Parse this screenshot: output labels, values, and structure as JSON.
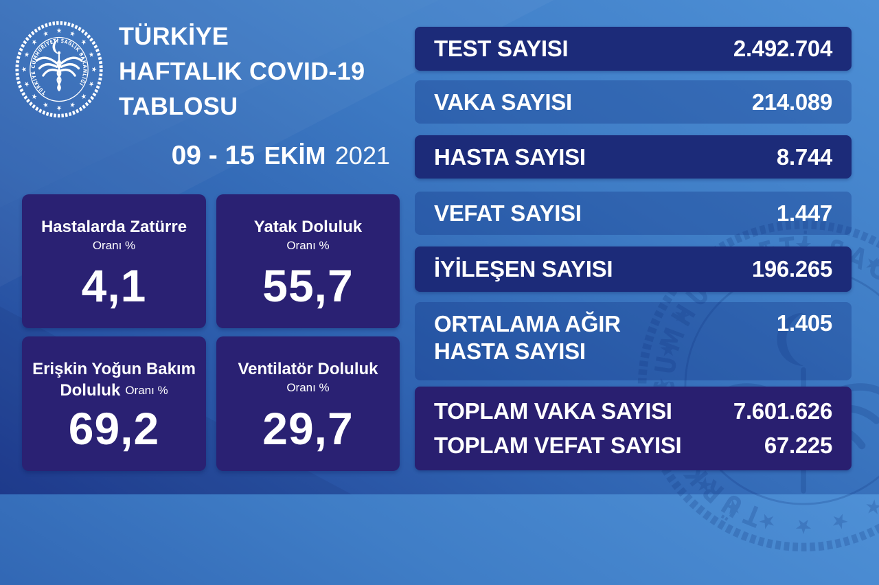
{
  "page": {
    "name": "Türkiye Haftalık COVID-19 Tablosu"
  },
  "header": {
    "title_lines": [
      "TÜRKİYE",
      "HAFTALIK COVID-19",
      "TABLOSU"
    ],
    "date_range": "09 - 15",
    "date_month": "EKİM",
    "date_year": "2021",
    "logo_ring_text": "TÜRKİYE CUMHURİYETİ SAĞLIK BAKANLIĞI"
  },
  "icons": {
    "star": "★"
  },
  "colors": {
    "background_top": "#4e90d6",
    "background_bottom": "#203e92",
    "panel_dark_navy": "#1c2b79",
    "panel_indigo": "#2a2173",
    "totals_indigo": "#291f70",
    "text": "#ffffff"
  },
  "cards": [
    {
      "title": "Hastalarda Zatürre",
      "title_bold2": "",
      "subtitle": "Oranı %",
      "value": "4,1"
    },
    {
      "title": "Yatak Doluluk",
      "title_bold2": "",
      "subtitle": "Oranı %",
      "value": "55,7"
    },
    {
      "title": "Erişkin Yoğun Bakım",
      "title_bold2": "Doluluk",
      "subtitle": "Oranı %",
      "value": "69,2"
    },
    {
      "title": "Ventilatör Doluluk",
      "title_bold2": "",
      "subtitle": "Oranı %",
      "value": "29,7"
    }
  ],
  "stats": [
    {
      "label": "TEST SAYISI",
      "value": "2.492.704"
    },
    {
      "label": "VAKA SAYISI",
      "value": "214.089"
    },
    {
      "label": "HASTA SAYISI",
      "value": "8.744"
    },
    {
      "label": "VEFAT SAYISI",
      "value": "1.447"
    },
    {
      "label": "İYİLEŞEN SAYISI",
      "value": "196.265"
    },
    {
      "label": "ORTALAMA AĞIR\nHASTA SAYISI",
      "value": "1.405"
    }
  ],
  "totals": [
    {
      "label": "TOPLAM VAKA SAYISI",
      "value": "7.601.626"
    },
    {
      "label": "TOPLAM VEFAT SAYISI",
      "value": "67.225"
    }
  ],
  "chart_data": {
    "type": "table",
    "title": "TÜRKİYE HAFTALIK COVID-19 TABLOSU",
    "period": "09 - 15 EKİM 2021",
    "weekly_counts": [
      {
        "metric": "TEST SAYISI",
        "value": 2492704
      },
      {
        "metric": "VAKA SAYISI",
        "value": 214089
      },
      {
        "metric": "HASTA SAYISI",
        "value": 8744
      },
      {
        "metric": "VEFAT SAYISI",
        "value": 1447
      },
      {
        "metric": "İYİLEŞEN SAYISI",
        "value": 196265
      },
      {
        "metric": "ORTALAMA AĞIR HASTA SAYISI",
        "value": 1405
      },
      {
        "metric": "TOPLAM VAKA SAYISI",
        "value": 7601626
      },
      {
        "metric": "TOPLAM VEFAT SAYISI",
        "value": 67225
      }
    ],
    "occupancy_rates_percent": [
      {
        "metric": "Hastalarda Zatürre Oranı",
        "value": 4.1
      },
      {
        "metric": "Yatak Doluluk Oranı",
        "value": 55.7
      },
      {
        "metric": "Erişkin Yoğun Bakım Doluluk Oranı",
        "value": 69.2
      },
      {
        "metric": "Ventilatör Doluluk Oranı",
        "value": 29.7
      }
    ]
  }
}
